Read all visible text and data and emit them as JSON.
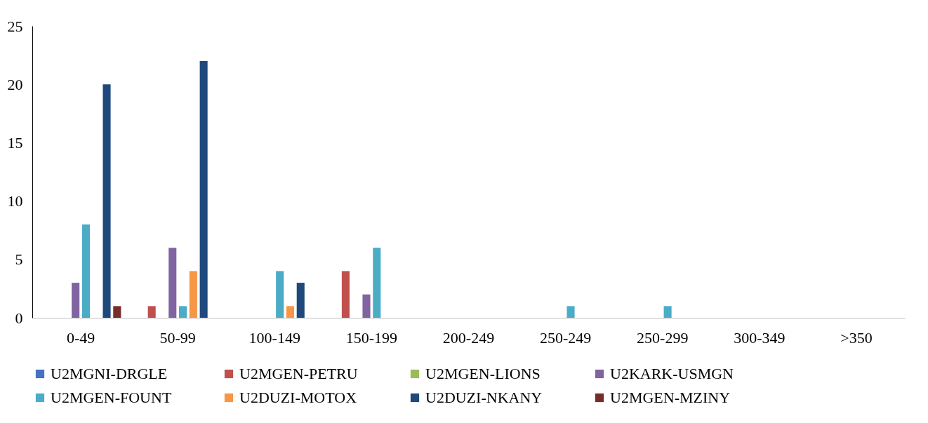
{
  "chart_data": {
    "type": "bar",
    "categories": [
      "0-49",
      "50-99",
      "100-149",
      "150-199",
      "200-249",
      "250-249",
      "250-299",
      "300-349",
      ">350"
    ],
    "series": [
      {
        "name": "U2MGNI-DRGLE",
        "color": "#4472c4",
        "values": [
          0,
          0,
          0,
          0,
          0,
          0,
          0,
          0,
          0
        ]
      },
      {
        "name": "U2MGEN-PETRU",
        "color": "#c0504d",
        "values": [
          0,
          1,
          0,
          4,
          0,
          0,
          0,
          0,
          0
        ]
      },
      {
        "name": "U2MGEN-LIONS",
        "color": "#9bbb59",
        "values": [
          0,
          0,
          0,
          0,
          0,
          0,
          0,
          0,
          0
        ]
      },
      {
        "name": "U2KARK-USMGN",
        "color": "#8064a2",
        "values": [
          3,
          6,
          0,
          2,
          0,
          0,
          0,
          0,
          0
        ]
      },
      {
        "name": "U2MGEN-FOUNT",
        "color": "#4bacc6",
        "values": [
          8,
          1,
          4,
          6,
          0,
          1,
          1,
          0,
          0
        ]
      },
      {
        "name": "U2DUZI-MOTOX",
        "color": "#f79646",
        "values": [
          0,
          4,
          1,
          0,
          0,
          0,
          0,
          0,
          0
        ]
      },
      {
        "name": "U2DUZI-NKANY",
        "color": "#1f497d",
        "values": [
          20,
          22,
          3,
          0,
          0,
          0,
          0,
          0,
          0
        ]
      },
      {
        "name": "U2MGEN-MZINY",
        "color": "#772c2a",
        "values": [
          1,
          0,
          0,
          0,
          0,
          0,
          0,
          0,
          0
        ]
      }
    ],
    "ylim": [
      0,
      25
    ],
    "yticks": [
      0,
      5,
      10,
      15,
      20,
      25
    ],
    "grid": false,
    "legend": "bottom"
  }
}
